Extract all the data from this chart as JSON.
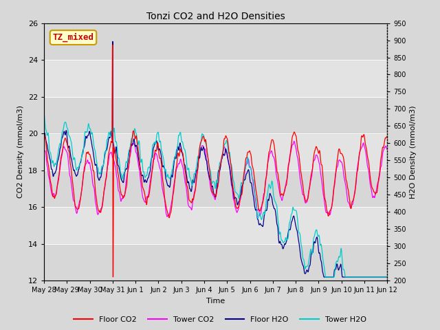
{
  "title": "Tonzi CO2 and H2O Densities",
  "xlabel": "Time",
  "ylabel_left": "CO2 Density (mmol/m3)",
  "ylabel_right": "H2O Density (mmol/m3)",
  "ylim_left": [
    12,
    26
  ],
  "ylim_right": [
    200,
    950
  ],
  "annotation_text": "TZ_mixed",
  "annotation_color": "#cc0000",
  "annotation_bg": "#ffffcc",
  "annotation_border": "#cc9900",
  "fig_bg": "#d8d8d8",
  "plot_bg": "#e8e8e8",
  "legend_entries": [
    "Floor CO2",
    "Tower CO2",
    "Floor H2O",
    "Tower H2O"
  ],
  "legend_colors": [
    "#ff0000",
    "#ff00ff",
    "#00008b",
    "#00cccc"
  ],
  "tick_labels": [
    "May 28",
    "May 29",
    "May 30",
    "May 31",
    "Jun 1",
    "Jun 2",
    "Jun 3",
    "Jun 4",
    "Jun 5",
    "Jun 6",
    "Jun 7",
    "Jun 8",
    "Jun 9",
    "Jun 10",
    "Jun 11",
    "Jun 12"
  ],
  "right_ticks": [
    200,
    250,
    300,
    350,
    400,
    450,
    500,
    550,
    600,
    650,
    700,
    750,
    800,
    850,
    900,
    950
  ],
  "left_ticks": [
    12,
    14,
    16,
    18,
    20,
    22,
    24,
    26
  ]
}
